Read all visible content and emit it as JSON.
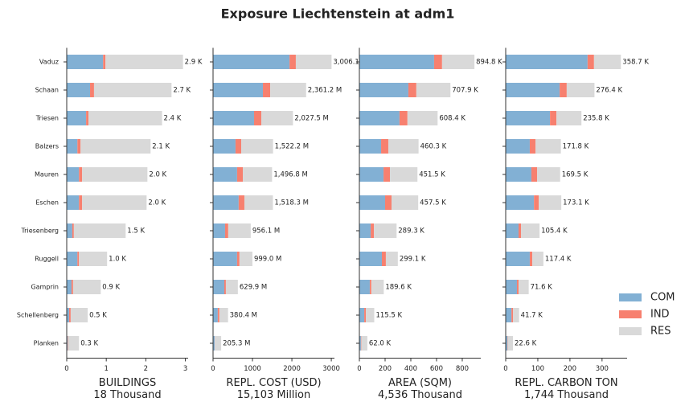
{
  "title": "Exposure Liechtenstein at adm1",
  "chart_data": [
    {
      "type": "bar",
      "xlabel": "BUILDINGS",
      "xlabel2": "18 Thousand",
      "categories": [
        "Vaduz",
        "Schaan",
        "Triesen",
        "Balzers",
        "Mauren",
        "Eschen",
        "Triesenberg",
        "Ruggell",
        "Gamprin",
        "Schellenberg",
        "Planken"
      ],
      "series": [
        {
          "name": "COM",
          "color": "#82b0d4",
          "values": [
            0.92,
            0.59,
            0.49,
            0.27,
            0.31,
            0.31,
            0.14,
            0.27,
            0.12,
            0.06,
            0.02
          ]
        },
        {
          "name": "IND",
          "color": "#f7806f",
          "values": [
            0.06,
            0.1,
            0.06,
            0.08,
            0.08,
            0.08,
            0.04,
            0.04,
            0.04,
            0.04,
            0.01
          ]
        },
        {
          "name": "RES",
          "color": "#d9d9d9",
          "values": [
            1.96,
            1.96,
            1.86,
            1.77,
            1.65,
            1.63,
            1.31,
            0.71,
            0.7,
            0.43,
            0.28
          ]
        }
      ],
      "totals": [
        2.94,
        2.65,
        2.41,
        2.12,
        2.04,
        2.02,
        1.49,
        1.02,
        0.86,
        0.53,
        0.31
      ],
      "total_labels": [
        "2.9 K",
        "2.7 K",
        "2.4 K",
        "2.1 K",
        "2.0 K",
        "2.0 K",
        "1.5 K",
        "1.0 K",
        "0.9 K",
        "0.5 K",
        "0.3 K"
      ],
      "xlim": [
        0,
        3.07
      ],
      "xticks": [
        0,
        1,
        2,
        3
      ]
    },
    {
      "type": "bar",
      "xlabel": "REPL. COST (USD)",
      "xlabel2": "15,103 Million",
      "series": [
        {
          "color": "#82b0d4",
          "values": [
            1940,
            1265,
            1040,
            570,
            610,
            650,
            305,
            610,
            285,
            120,
            40
          ]
        },
        {
          "color": "#f7806f",
          "values": [
            160,
            185,
            185,
            145,
            145,
            145,
            80,
            60,
            40,
            40,
            5
          ]
        },
        {
          "color": "#d9d9d9",
          "values": [
            906.1,
            911.2,
            802.5,
            807.2,
            741.8,
            723.3,
            571.1,
            329,
            304.9,
            220.4,
            160.3
          ]
        }
      ],
      "totals": [
        3006.1,
        2361.2,
        2027.5,
        1522.2,
        1496.8,
        1518.3,
        956.1,
        999.0,
        629.9,
        380.4,
        205.3
      ],
      "total_labels": [
        "3,006.1",
        "2,361.2 M",
        "2,027.5 M",
        "1,522.2 M",
        "1,496.8 M",
        "1,518.3 M",
        "956.1 M",
        "999.0 M",
        "629.9 M",
        "380.4 M",
        "205.3 M"
      ],
      "xlim": [
        0,
        3080
      ],
      "xticks": [
        0,
        1000,
        2000,
        3000
      ]
    },
    {
      "type": "bar",
      "xlabel": "AREA (SQM)",
      "xlabel2": "4,536 Thousand",
      "series": [
        {
          "color": "#82b0d4",
          "values": [
            581,
            381,
            312,
            169,
            188,
            200,
            88,
            175,
            81,
            38,
            12
          ]
        },
        {
          "color": "#f7806f",
          "values": [
            62,
            62,
            62,
            56,
            50,
            50,
            25,
            31,
            12,
            12,
            3
          ]
        },
        {
          "color": "#d9d9d9",
          "values": [
            251.8,
            264.9,
            234.4,
            235.3,
            213.5,
            207.5,
            176.3,
            93.1,
            96.6,
            65.5,
            47
          ]
        }
      ],
      "totals": [
        894.8,
        707.9,
        608.4,
        460.3,
        451.5,
        457.5,
        289.3,
        299.1,
        189.6,
        115.5,
        62.0
      ],
      "total_labels": [
        "894.8 K",
        "707.9 K",
        "608.4 K",
        "460.3 K",
        "451.5 K",
        "457.5 K",
        "289.3 K",
        "299.1 K",
        "189.6 K",
        "115.5 K",
        "62.0 K"
      ],
      "xlim": [
        0,
        944
      ],
      "xticks": [
        0,
        200,
        400,
        600,
        800
      ]
    },
    {
      "type": "bar",
      "xlabel": "REPL. CARBON TON",
      "xlabel2": "1,744 Thousand",
      "series": [
        {
          "color": "#82b0d4",
          "values": [
            255,
            168,
            138,
            75,
            80,
            88,
            40,
            75,
            35,
            18,
            5
          ]
        },
        {
          "color": "#f7806f",
          "values": [
            20,
            22,
            20,
            18,
            18,
            15,
            8,
            8,
            5,
            5,
            1
          ]
        },
        {
          "color": "#d9d9d9",
          "values": [
            83.7,
            86.4,
            77.8,
            78.8,
            71.5,
            70.1,
            57.4,
            34.4,
            31.6,
            18.7,
            16.6
          ]
        }
      ],
      "totals": [
        358.7,
        276.4,
        235.8,
        171.8,
        169.5,
        173.1,
        105.4,
        117.4,
        71.6,
        41.7,
        22.6
      ],
      "total_labels": [
        "358.7 K",
        "276.4 K",
        "235.8 K",
        "171.8 K",
        "169.5 K",
        "173.1 K",
        "105.4 K",
        "117.4 K",
        "71.6 K",
        "41.7 K",
        "22.6 K"
      ],
      "xlim": [
        0,
        378
      ],
      "xticks": [
        0,
        100,
        200,
        300
      ]
    }
  ]
}
